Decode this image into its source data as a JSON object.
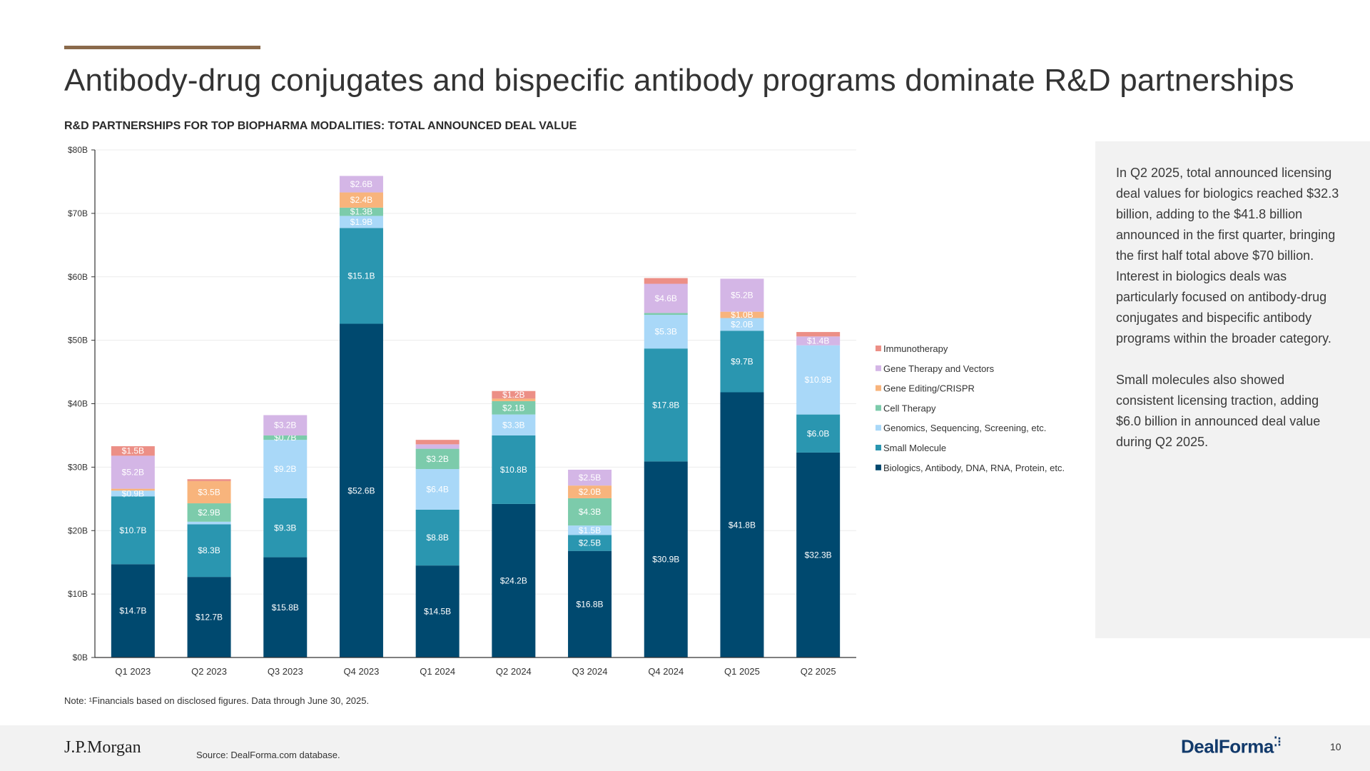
{
  "page": {
    "title": "Antibody-drug conjugates and bispecific antibody programs dominate R&D partnerships",
    "subtitle": "R&D PARTNERSHIPS FOR TOP BIOPHARMA MODALITIES: TOTAL ANNOUNCED DEAL VALUE",
    "note": "Note: ¹Financials based on disclosed figures. Data through June 30, 2025.",
    "source": "Source: DealForma.com database.",
    "page_number": "10",
    "logo_left": "J.P.Morgan",
    "logo_right": "DealForma",
    "logo_right_mark": "⁚⁝",
    "panel_paragraphs": [
      "In Q2 2025, total announced licensing deal values for biologics reached $32.3 billion, adding to the $41.8 billion announced in the first quarter, bringing the first half total above $70 billion. Interest in biologics deals was particularly focused on antibody-drug conjugates and bispecific antibody programs within the broader category.",
      "Small molecules also showed consistent licensing traction, adding $6.0 billion in announced deal value during Q2 2025."
    ]
  },
  "chart_data": {
    "type": "bar",
    "stacked": true,
    "title": "R&D PARTNERSHIPS FOR TOP BIOPHARMA MODALITIES: TOTAL ANNOUNCED DEAL VALUE",
    "xlabel": "",
    "ylabel": "",
    "ylim": [
      0,
      80
    ],
    "yticks": [
      0,
      10,
      20,
      30,
      40,
      50,
      60,
      70,
      80
    ],
    "ytick_labels": [
      "$0B",
      "$10B",
      "$20B",
      "$30B",
      "$40B",
      "$50B",
      "$60B",
      "$70B",
      "$80B"
    ],
    "grid": true,
    "legend_position": "right",
    "categories": [
      "Q1 2023",
      "Q2 2023",
      "Q3 2023",
      "Q4 2023",
      "Q1 2024",
      "Q2 2024",
      "Q3 2024",
      "Q4 2024",
      "Q1 2025",
      "Q2 2025"
    ],
    "series": [
      {
        "name": "Biologics, Antibody, DNA, RNA, Protein, etc.",
        "color": "#00496f",
        "label_color": "#ffffff",
        "values": [
          14.7,
          12.7,
          15.8,
          52.6,
          14.5,
          24.2,
          16.8,
          30.9,
          41.8,
          32.3
        ],
        "labels": [
          "$14.7B",
          "$12.7B",
          "$15.8B",
          "$52.6B",
          "$14.5B",
          "$24.2B",
          "$16.8B",
          "$30.9B",
          "$41.8B",
          "$32.3B"
        ]
      },
      {
        "name": "Small Molecule",
        "color": "#2a96b0",
        "label_color": "#ffffff",
        "values": [
          10.7,
          8.3,
          9.3,
          15.1,
          8.8,
          10.8,
          2.5,
          17.8,
          9.7,
          6.0
        ],
        "labels": [
          "$10.7B",
          "$8.3B",
          "$9.3B",
          "$15.1B",
          "$8.8B",
          "$10.8B",
          "$2.5B",
          "$17.8B",
          "$9.7B",
          "$6.0B"
        ]
      },
      {
        "name": "Genomics, Sequencing, Screening, etc.",
        "color": "#a9d8f8",
        "label_color": "#ffffff",
        "values": [
          0.9,
          0.4,
          9.2,
          1.9,
          6.4,
          3.3,
          1.5,
          5.3,
          2.0,
          10.9
        ],
        "labels": [
          "$0.9B",
          "",
          "$9.2B",
          "$1.9B",
          "$6.4B",
          "$3.3B",
          "$1.5B",
          "$5.3B",
          "$2.0B",
          "$10.9B"
        ]
      },
      {
        "name": "Cell Therapy",
        "color": "#7ccbab",
        "label_color": "#ffffff",
        "values": [
          0,
          2.9,
          0.7,
          1.3,
          3.2,
          2.1,
          4.3,
          0.3,
          0,
          0
        ],
        "labels": [
          "",
          "$2.9B",
          "$0.7B",
          "$1.3B",
          "$3.2B",
          "$2.1B",
          "$4.3B",
          "",
          "",
          ""
        ]
      },
      {
        "name": "Gene Editing/CRISPR",
        "color": "#f8b47c",
        "label_color": "#ffffff",
        "values": [
          0.3,
          3.5,
          0,
          2.4,
          0,
          0.4,
          2.0,
          0,
          1.0,
          0
        ],
        "labels": [
          "",
          "$3.5B",
          "",
          "$2.4B",
          "",
          "",
          "$2.0B",
          "",
          "$1.0B",
          ""
        ]
      },
      {
        "name": "Gene Therapy and Vectors",
        "color": "#d4b6e6",
        "label_color": "#ffffff",
        "values": [
          5.2,
          0,
          3.2,
          2.6,
          0.7,
          0,
          2.5,
          4.6,
          5.2,
          1.4
        ],
        "labels": [
          "$5.2B",
          "",
          "$3.2B",
          "$2.6B",
          "",
          "",
          "$2.5B",
          "$4.6B",
          "$5.2B",
          "$1.4B"
        ]
      },
      {
        "name": "Immunotherapy",
        "color": "#ec8f86",
        "label_color": "#ffffff",
        "values": [
          1.5,
          0.3,
          0,
          0,
          0.7,
          1.2,
          0,
          0.9,
          0,
          0.7
        ],
        "labels": [
          "$1.5B",
          "",
          "",
          "",
          "",
          "$1.2B",
          "",
          "",
          "",
          ""
        ]
      }
    ],
    "legend_order": [
      "Immunotherapy",
      "Gene Therapy and Vectors",
      "Gene Editing/CRISPR",
      "Cell Therapy",
      "Genomics, Sequencing, Screening, etc.",
      "Small Molecule",
      "Biologics, Antibody, DNA, RNA, Protein, etc."
    ]
  }
}
